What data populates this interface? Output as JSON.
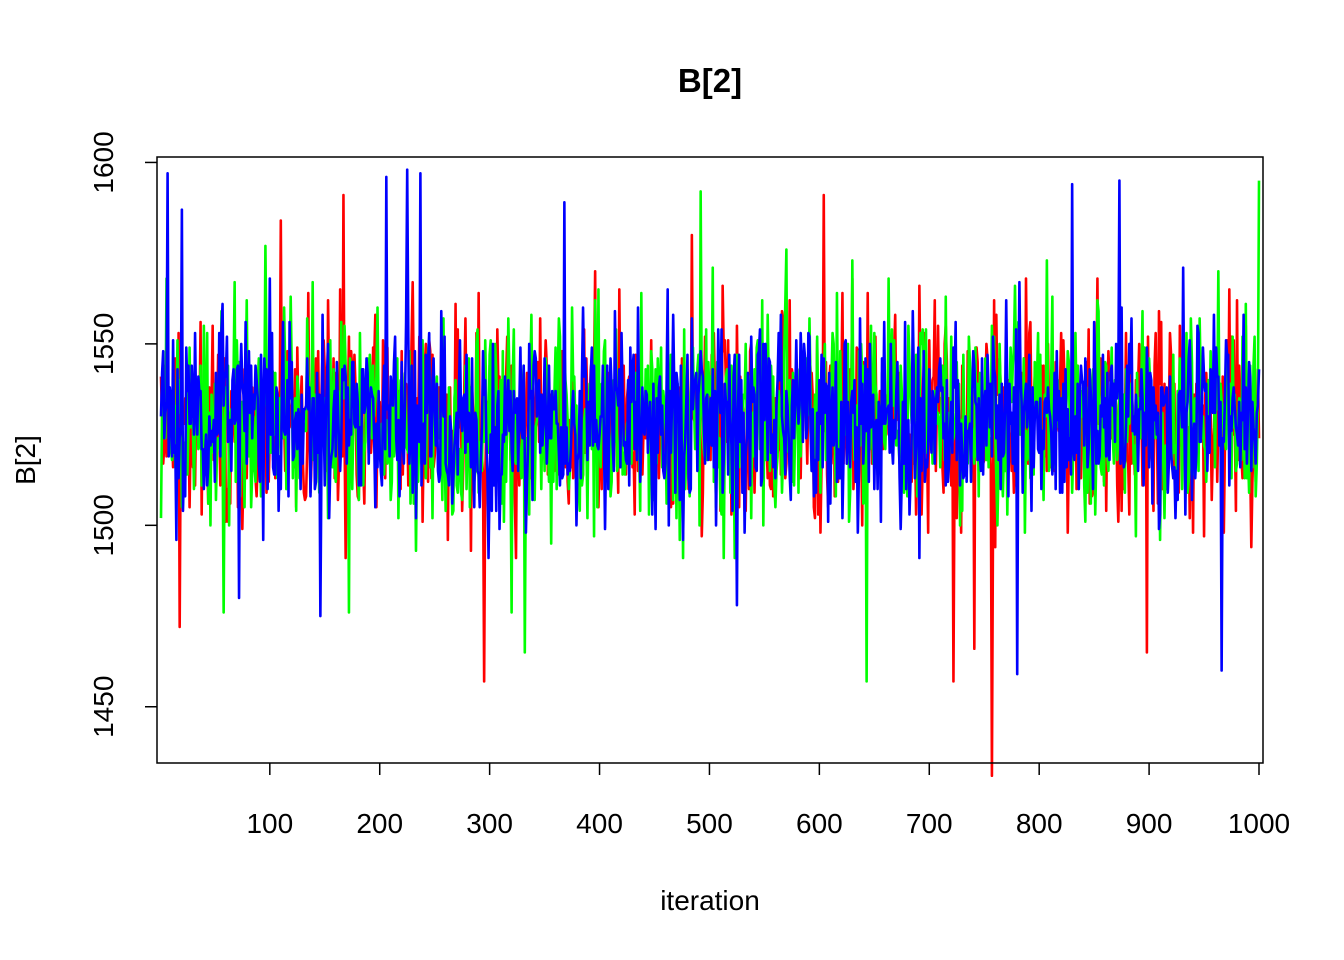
{
  "chart_data": {
    "type": "line",
    "title": "B[2]",
    "xlabel": "iteration",
    "ylabel": "B[2]",
    "xlim": [
      1,
      1000
    ],
    "ylim": [
      1434.5,
      1601.5
    ],
    "x_ticks": [
      100,
      200,
      300,
      400,
      500,
      600,
      700,
      800,
      900,
      1000
    ],
    "x_tick_labels": [
      "100",
      "200",
      "300",
      "400",
      "500",
      "600",
      "700",
      "800",
      "900",
      "1000"
    ],
    "y_ticks": [
      1450,
      1500,
      1550,
      1600
    ],
    "y_tick_labels": [
      "1450",
      "1500",
      "1550",
      "1600"
    ],
    "x": {
      "from": 1,
      "to": 1000,
      "step": 1
    },
    "mean": 1529,
    "sd": 14,
    "series": [
      {
        "color": "#FF0000",
        "seed": 11,
        "values": [],
        "extremes": {
          "18": 1472,
          "110": 1584,
          "167": 1591,
          "230": 1567,
          "295": 1457,
          "484": 1580,
          "604": 1591,
          "722": 1457,
          "741": 1466,
          "757": 1431,
          "898": 1465,
          "973": 1565
        }
      },
      {
        "color": "#00FF00",
        "seed": 23,
        "values": [],
        "extremes": {
          "58": 1476,
          "96": 1577,
          "172": 1476,
          "320": 1476,
          "332": 1465,
          "492": 1592,
          "570": 1576,
          "643": 1457,
          "778": 1566,
          "963": 1570,
          "1000": 1595
        }
      },
      {
        "color": "#0000FF",
        "seed": 37,
        "values": [],
        "extremes": {
          "7": 1597,
          "20": 1587,
          "146": 1475,
          "206": 1596,
          "225": 1598,
          "237": 1597,
          "368": 1589,
          "525": 1478,
          "780": 1459,
          "830": 1594,
          "873": 1595,
          "966": 1460
        }
      }
    ],
    "legend": "none",
    "grid": false
  }
}
